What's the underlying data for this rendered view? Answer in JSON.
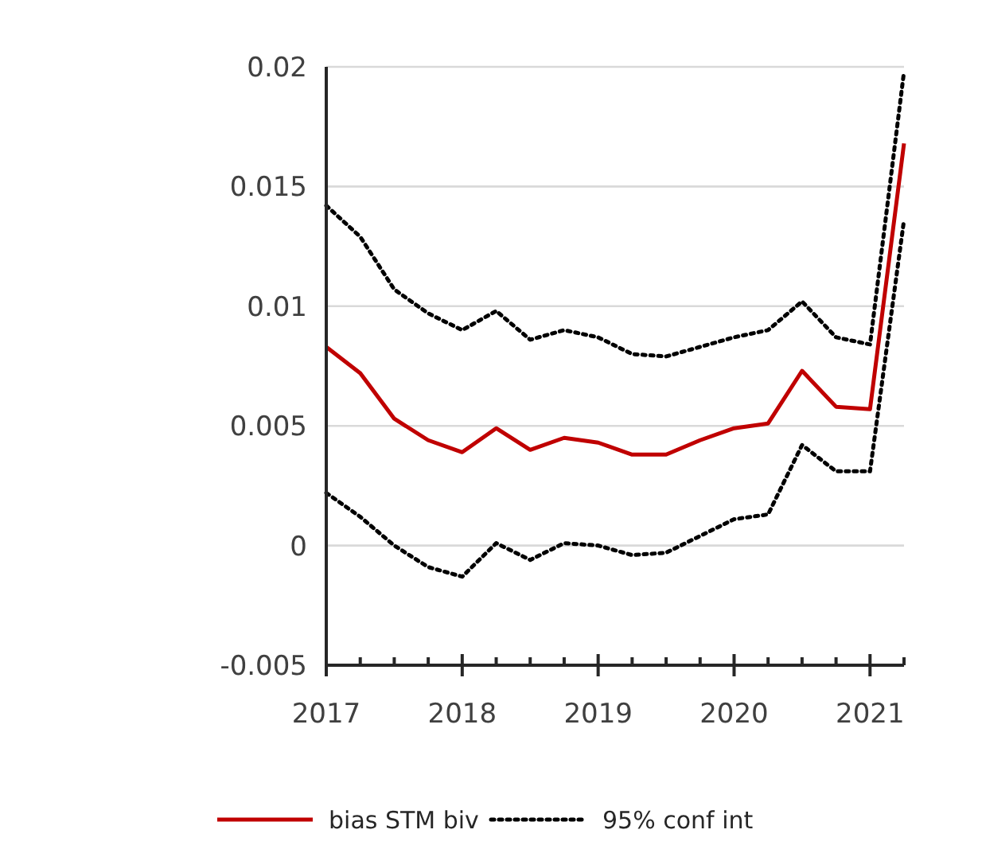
{
  "chart_data": {
    "type": "line",
    "x": [
      2017,
      2017.25,
      2017.5,
      2017.75,
      2018,
      2018.25,
      2018.5,
      2018.75,
      2019,
      2019.25,
      2019.5,
      2019.75,
      2020,
      2020.25,
      2020.5,
      2020.75,
      2021,
      2021.25
    ],
    "series": [
      {
        "name": "bias STM biv",
        "color": "#c00000",
        "line_style": "solid",
        "values": [
          0.0083,
          0.0072,
          0.0053,
          0.0044,
          0.0039,
          0.0049,
          0.004,
          0.0045,
          0.0043,
          0.0038,
          0.0038,
          0.0044,
          0.0049,
          0.0051,
          0.0073,
          0.0058,
          0.0057,
          0.0168
        ]
      },
      {
        "name": "95% conf int",
        "color": "#000000",
        "line_style": "dotted",
        "values": [
          0.0142,
          0.0129,
          0.0107,
          0.0097,
          0.009,
          0.0098,
          0.0086,
          0.009,
          0.0087,
          0.008,
          0.0079,
          0.0083,
          0.0087,
          0.009,
          0.0102,
          0.0087,
          0.0084,
          0.0198
        ]
      },
      {
        "color": "#000000",
        "line_style": "dotted",
        "values": [
          0.0022,
          0.0012,
          0,
          -0.0009,
          -0.0013,
          0.0001,
          -0.0006,
          0.0001,
          0,
          -0.0004,
          -0.0003,
          0.0004,
          0.0011,
          0.0013,
          0.0042,
          0.0031,
          0.0031,
          0.0136
        ]
      }
    ],
    "xlim": [
      2017,
      2021.25
    ],
    "xticks": [
      2017,
      {
        "value": 2017.25,
        "label": null
      },
      {
        "value": 2017.5,
        "label": null
      },
      {
        "value": 2017.75,
        "label": null
      },
      2018,
      {
        "value": 2018.25,
        "label": null
      },
      {
        "value": 2018.5,
        "label": null
      },
      {
        "value": 2018.75,
        "label": null
      },
      2019,
      {
        "value": 2019.25,
        "label": null
      },
      {
        "value": 2019.5,
        "label": null
      },
      {
        "value": 2019.75,
        "label": null
      },
      2020,
      {
        "value": 2020.25,
        "label": null
      },
      {
        "value": 2020.5,
        "label": null
      },
      {
        "value": 2020.75,
        "label": null
      },
      2021,
      {
        "value": 2021.25,
        "label": null
      }
    ],
    "ylim": [
      -0.005,
      0.02
    ],
    "yticks": [
      -0.005,
      0,
      0.005,
      0.01,
      0.015,
      0.02
    ],
    "grid": "y",
    "legend": "bottom",
    "marker": "none"
  }
}
